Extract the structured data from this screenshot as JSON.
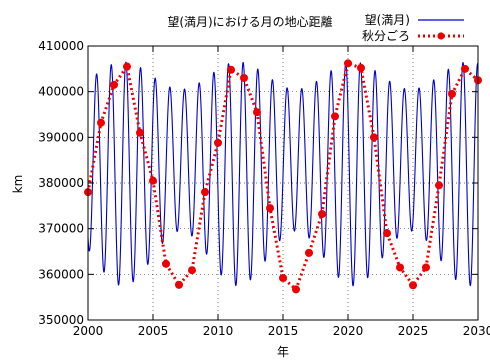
{
  "chart_data": {
    "type": "line",
    "title": "望(満月)における月の地心距離",
    "xlabel": "年",
    "ylabel": "km",
    "xlim": [
      2000,
      2030
    ],
    "ylim": [
      350000,
      410000
    ],
    "x_ticks": [
      2000,
      2005,
      2010,
      2015,
      2020,
      2025,
      2030
    ],
    "x_tick_labels": [
      "2000",
      "2005",
      "2010",
      "2015",
      "2020",
      "2025",
      "2030"
    ],
    "y_ticks": [
      350000,
      360000,
      370000,
      380000,
      390000,
      400000,
      410000
    ],
    "y_tick_labels": [
      "350000",
      "360000",
      "370000",
      "380000",
      "390000",
      "400000",
      "410000"
    ],
    "grid": "dotted",
    "legend_position": "top-right",
    "series": [
      {
        "name": "望(満月)",
        "style": "solid-line",
        "color": "#0000cc",
        "oscillation": {
          "period_years": 1.1274,
          "phase_peak_year": 2000.66,
          "ma_max": 406500,
          "ma_min": 357500,
          "mb_max": 400500,
          "mb_min": 369500,
          "modulation_period_years": 8.85,
          "modulation_peak_year": 2002.7
        }
      },
      {
        "name": "秋分ごろ",
        "style": "dotted-line-with-markers",
        "color": "#ee0000",
        "x": [
          2000,
          2001,
          2002,
          2003,
          2004,
          2005,
          2006,
          2007,
          2008,
          2009,
          2010,
          2011,
          2012,
          2013,
          2014,
          2015,
          2016,
          2017,
          2018,
          2019,
          2020,
          2021,
          2022,
          2023,
          2024,
          2025,
          2026,
          2027,
          2028,
          2029,
          2030
        ],
        "y": [
          378000,
          393200,
          401500,
          405500,
          391000,
          380500,
          362300,
          357700,
          360900,
          378000,
          388800,
          404800,
          403000,
          395500,
          374500,
          359200,
          356700,
          364700,
          373200,
          394600,
          406200,
          405200,
          390000,
          369000,
          361500,
          357600,
          361500,
          379500,
          399500,
          405000,
          402500
        ]
      }
    ]
  }
}
